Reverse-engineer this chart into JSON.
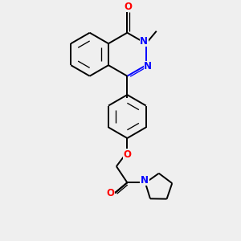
{
  "bg": "#efefef",
  "bc": "#000000",
  "nc": "#0000ff",
  "oc": "#ff0000",
  "lw": 1.4,
  "lw2": 0.95,
  "fs": 8.5,
  "figsize": [
    3.0,
    3.0
  ],
  "dpi": 100,
  "xlim": [
    0,
    10
  ],
  "ylim": [
    0,
    10
  ]
}
